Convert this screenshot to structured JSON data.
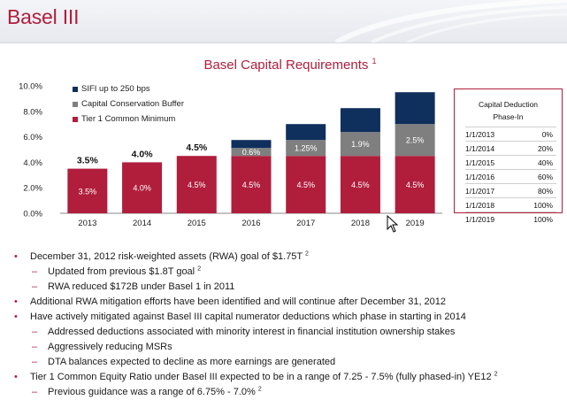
{
  "slide": {
    "title": "Basel III",
    "chart_title": "Basel Capital Requirements",
    "chart_title_ref": "1"
  },
  "legend": [
    {
      "label": "SIFI up to 250 bps",
      "color": "#0f2f5c"
    },
    {
      "label": "Capital Conservation Buffer",
      "color": "#7f7f7f"
    },
    {
      "label": "Tier 1 Common Minimum",
      "color": "#b01e3c"
    }
  ],
  "chart_data": {
    "type": "bar",
    "stacked": true,
    "title": "Basel Capital Requirements",
    "categories": [
      "2013",
      "2014",
      "2015",
      "2016",
      "2017",
      "2018",
      "2019"
    ],
    "series": [
      {
        "name": "Tier 1 Common Minimum",
        "color": "#b01e3c",
        "values": [
          3.5,
          4.0,
          4.5,
          4.5,
          4.5,
          4.5,
          4.5
        ],
        "labels": [
          "3.5%",
          "4.0%",
          "4.5%",
          "4.5%",
          "4.5%",
          "4.5%",
          "4.5%"
        ]
      },
      {
        "name": "Capital Conservation Buffer",
        "color": "#7f7f7f",
        "values": [
          0,
          0,
          0,
          0.625,
          1.25,
          1.875,
          2.5
        ],
        "labels": [
          "",
          "",
          "",
          "0.6%",
          "1.25%",
          "1.9%",
          "2.5%"
        ]
      },
      {
        "name": "SIFI up to 250 bps",
        "color": "#0f2f5c",
        "values": [
          0,
          0,
          0,
          0.625,
          1.25,
          1.875,
          2.5
        ],
        "labels": [
          "",
          "",
          "",
          "",
          "",
          "",
          ""
        ]
      }
    ],
    "top_labels": [
      "3.5%",
      "4.0%",
      "4.5%",
      "",
      "",
      "",
      ""
    ],
    "ylim": [
      0,
      10
    ],
    "yticks": [
      "0.0%",
      "2.0%",
      "4.0%",
      "6.0%",
      "8.0%",
      "10.0%"
    ],
    "ytick_values": [
      0,
      2,
      4,
      6,
      8,
      10
    ],
    "grid": false,
    "legend_position": "top-left"
  },
  "phase_in_table": {
    "title_line1": "Capital Deduction",
    "title_line2": "Phase-In",
    "rows": [
      {
        "date": "1/1/2013",
        "pct": "0%"
      },
      {
        "date": "1/1/2014",
        "pct": "20%"
      },
      {
        "date": "1/1/2015",
        "pct": "40%"
      },
      {
        "date": "1/1/2016",
        "pct": "60%"
      },
      {
        "date": "1/1/2017",
        "pct": "80%"
      },
      {
        "date": "1/1/2018",
        "pct": "100%"
      },
      {
        "date": "1/1/2019",
        "pct": "100%"
      }
    ]
  },
  "bullets": [
    {
      "level": 1,
      "text": "December 31, 2012 risk-weighted assets (RWA) goal of $1.75T",
      "ref": "2"
    },
    {
      "level": 2,
      "text": "Updated from previous $1.8T goal",
      "ref": "2"
    },
    {
      "level": 2,
      "text": "RWA reduced $172B under Basel 1 in 2011",
      "ref": ""
    },
    {
      "level": 1,
      "text": "Additional RWA mitigation efforts have been identified and will continue after December 31, 2012",
      "ref": ""
    },
    {
      "level": 1,
      "text": "Have actively mitigated against Basel III capital numerator deductions which phase in starting in 2014",
      "ref": ""
    },
    {
      "level": 2,
      "text": "Addressed deductions associated with minority interest in financial institution ownership stakes",
      "ref": ""
    },
    {
      "level": 2,
      "text": "Aggressively reducing MSRs",
      "ref": ""
    },
    {
      "level": 2,
      "text": "DTA balances expected to decline as more earnings are generated",
      "ref": ""
    },
    {
      "level": 1,
      "text": "Tier 1 Common Equity Ratio under Basel III expected to be in a range of 7.25 - 7.5% (fully phased-in) YE12",
      "ref": "2"
    },
    {
      "level": 2,
      "text": "Previous guidance was a range of 6.75% - 7.0%",
      "ref": "2"
    }
  ],
  "bullet_marks": {
    "level1": "•",
    "level2": "–"
  }
}
